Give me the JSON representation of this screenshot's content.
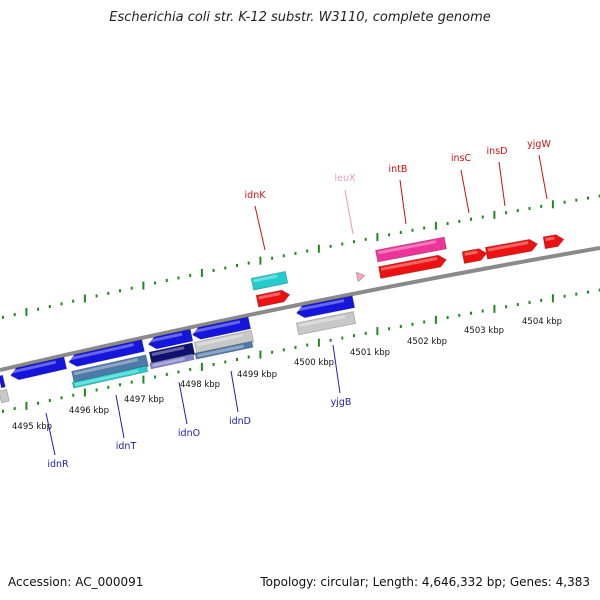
{
  "title": "Escherichia coli str. K-12 substr. W3110, complete genome",
  "accession": "Accession: AC_000091",
  "topology": "Topology: circular; Length: 4,646,332 bp; Genes: 4,383",
  "colors": {
    "backbone": "#8a8a8a",
    "tick": "#1e8a1e",
    "forward_label": "#cc1111",
    "reverse_label": "#2222aa",
    "trna_label": "#ee99bb",
    "red": "#ee1111",
    "blue": "#1515dd",
    "cyan": "#22cccc",
    "magenta": "#ee3399",
    "pink": "#f4a8c8",
    "gray": "#c8c8c8",
    "steel": "#4f79a8",
    "navy": "#101070",
    "lavender": "#8080c8"
  },
  "kbp_labels": [
    "4495 kbp",
    "4496 kbp",
    "4497 kbp",
    "4498 kbp",
    "4499 kbp",
    "4500 kbp",
    "4501 kbp",
    "4502 kbp",
    "4503 kbp",
    "4504 kbp"
  ],
  "forward_genes": [
    {
      "name": "idnK",
      "color": "red"
    },
    {
      "name": "leuX",
      "color": "pink"
    },
    {
      "name": "intB",
      "color": "magenta"
    },
    {
      "name": "insC",
      "color": "red"
    },
    {
      "name": "insD",
      "color": "red"
    },
    {
      "name": "yjgW",
      "color": "red"
    }
  ],
  "reverse_genes": [
    {
      "name": "idnR",
      "color": "blue"
    },
    {
      "name": "idnT",
      "color": "blue"
    },
    {
      "name": "idnO",
      "color": "blue"
    },
    {
      "name": "idnD",
      "color": "blue"
    },
    {
      "name": "yjgB",
      "color": "blue"
    }
  ]
}
